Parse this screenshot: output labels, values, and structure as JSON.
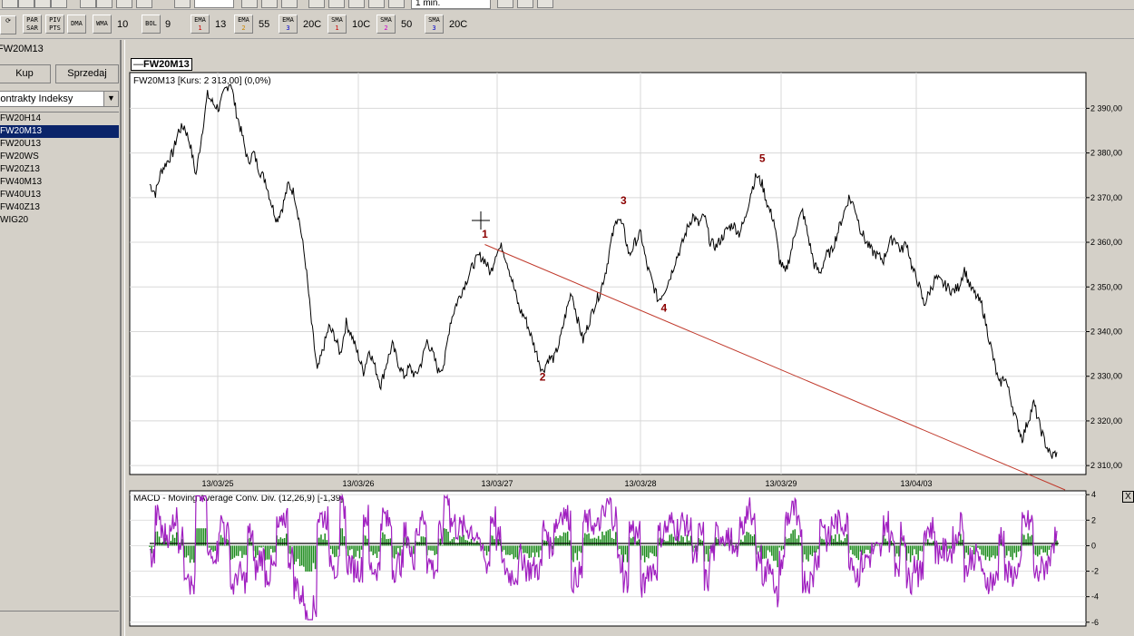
{
  "toolbar": {
    "timeframe": "1 min.",
    "indicators": [
      {
        "name": "PAR SAR",
        "value": ""
      },
      {
        "name": "PIV PTS",
        "value": ""
      },
      {
        "name": "DMA",
        "value": ""
      },
      {
        "name": "WMA",
        "value": "10"
      },
      {
        "name": "BOL",
        "value": "9"
      },
      {
        "name": "EMA 1",
        "value": "13"
      },
      {
        "name": "EMA 2",
        "value": "55"
      },
      {
        "name": "EMA 3",
        "value": "20C"
      },
      {
        "name": "SMA 1",
        "value": "10C"
      },
      {
        "name": "SMA 2",
        "value": "50"
      },
      {
        "name": "SMA 3",
        "value": "20C"
      }
    ]
  },
  "left_panel": {
    "title": "FW20M13",
    "buy_label": "Kup",
    "sell_label": "Sprzedaj",
    "category": "Kontrakty Indeksy",
    "instruments": [
      "FW20H14",
      "FW20M13",
      "FW20U13",
      "FW20WS",
      "FW20Z13",
      "FW40M13",
      "FW40U13",
      "FW40Z13",
      "WIG20"
    ],
    "selected_index": 1
  },
  "chart": {
    "tab_label": "FW20M13",
    "header": "FW20M13 [Kurs: 2 313,00] (0,0%)",
    "macd_header": "MACD - Moving Average Conv. Div. (12,26,9) [-1,39]",
    "close_label": "X",
    "line_color": "#000000",
    "trendline_color": "#c0392b",
    "macd_line_color": "#a020c0",
    "histogram_color": "#1a8a1a",
    "wave_label_color": "#8b0000"
  },
  "chart_data": [
    {
      "type": "line",
      "title": "FW20M13",
      "x_labels": [
        "13/03/25",
        "13/03/26",
        "13/03/27",
        "13/03/28",
        "13/03/29",
        "13/04/03"
      ],
      "ylim": [
        2308,
        2398
      ],
      "y_ticks": [
        "2 310,00",
        "2 320,00",
        "2 330,00",
        "2 340,00",
        "2 350,00",
        "2 360,00",
        "2 370,00",
        "2 380,00",
        "2 390,00"
      ],
      "y_tick_values": [
        2310,
        2320,
        2330,
        2340,
        2350,
        2360,
        2370,
        2380,
        2390
      ],
      "series": [
        {
          "values": [
            2373,
            2371,
            2376,
            2378,
            2380,
            2385,
            2386,
            2382,
            2375,
            2384,
            2393,
            2391,
            2390,
            2394,
            2396,
            2389,
            2384,
            2378,
            2380,
            2376,
            2374,
            2369,
            2365,
            2368,
            2373,
            2371,
            2364,
            2355,
            2342,
            2331,
            2336,
            2341,
            2339,
            2335,
            2342,
            2339,
            2335,
            2331,
            2336,
            2332,
            2328,
            2333,
            2337,
            2333,
            2330,
            2332,
            2330,
            2333,
            2338,
            2335,
            2331,
            2333,
            2342,
            2346,
            2349,
            2352,
            2355,
            2357,
            2356,
            2353,
            2358,
            2359,
            2355,
            2350,
            2345,
            2343,
            2339,
            2335,
            2331,
            2334,
            2334,
            2338,
            2344,
            2349,
            2343,
            2338,
            2342,
            2346,
            2349,
            2354,
            2361,
            2366,
            2363,
            2357,
            2360,
            2362,
            2355,
            2351,
            2347,
            2349,
            2352,
            2356,
            2359,
            2363,
            2366,
            2364,
            2366,
            2360,
            2359,
            2361,
            2363,
            2364,
            2362,
            2365,
            2371,
            2375,
            2373,
            2368,
            2365,
            2356,
            2353,
            2358,
            2364,
            2367,
            2361,
            2355,
            2353,
            2357,
            2358,
            2362,
            2366,
            2370,
            2368,
            2363,
            2360,
            2358,
            2357,
            2356,
            2360,
            2361,
            2358,
            2360,
            2354,
            2351,
            2346,
            2349,
            2352,
            2351,
            2350,
            2349,
            2350,
            2354,
            2350,
            2348,
            2346,
            2340,
            2334,
            2328,
            2330,
            2325,
            2320,
            2316,
            2320,
            2324,
            2319,
            2315,
            2312,
            2313
          ]
        }
      ],
      "wave_labels": [
        {
          "label": "1",
          "x_index": 58,
          "y": 2361
        },
        {
          "label": "2",
          "x_index": 68,
          "y": 2329
        },
        {
          "label": "3",
          "x_index": 82,
          "y": 2368.5
        },
        {
          "label": "4",
          "x_index": 89,
          "y": 2344.5
        },
        {
          "label": "5",
          "x_index": 106,
          "y": 2378
        },
        {
          "trendline_from": [
            58,
            2359.5
          ],
          "trendline_to": [
            160,
            2305
          ]
        }
      ]
    },
    {
      "type": "line",
      "title": "MACD - Moving Average Conv. Div. (12,26,9)",
      "ylim": [
        -6.3,
        4.3
      ],
      "y_ticks": [
        "4",
        "2",
        "0",
        "-2",
        "-4",
        "-6"
      ],
      "y_tick_values": [
        4,
        2,
        0,
        -2,
        -4,
        -6
      ]
    }
  ]
}
